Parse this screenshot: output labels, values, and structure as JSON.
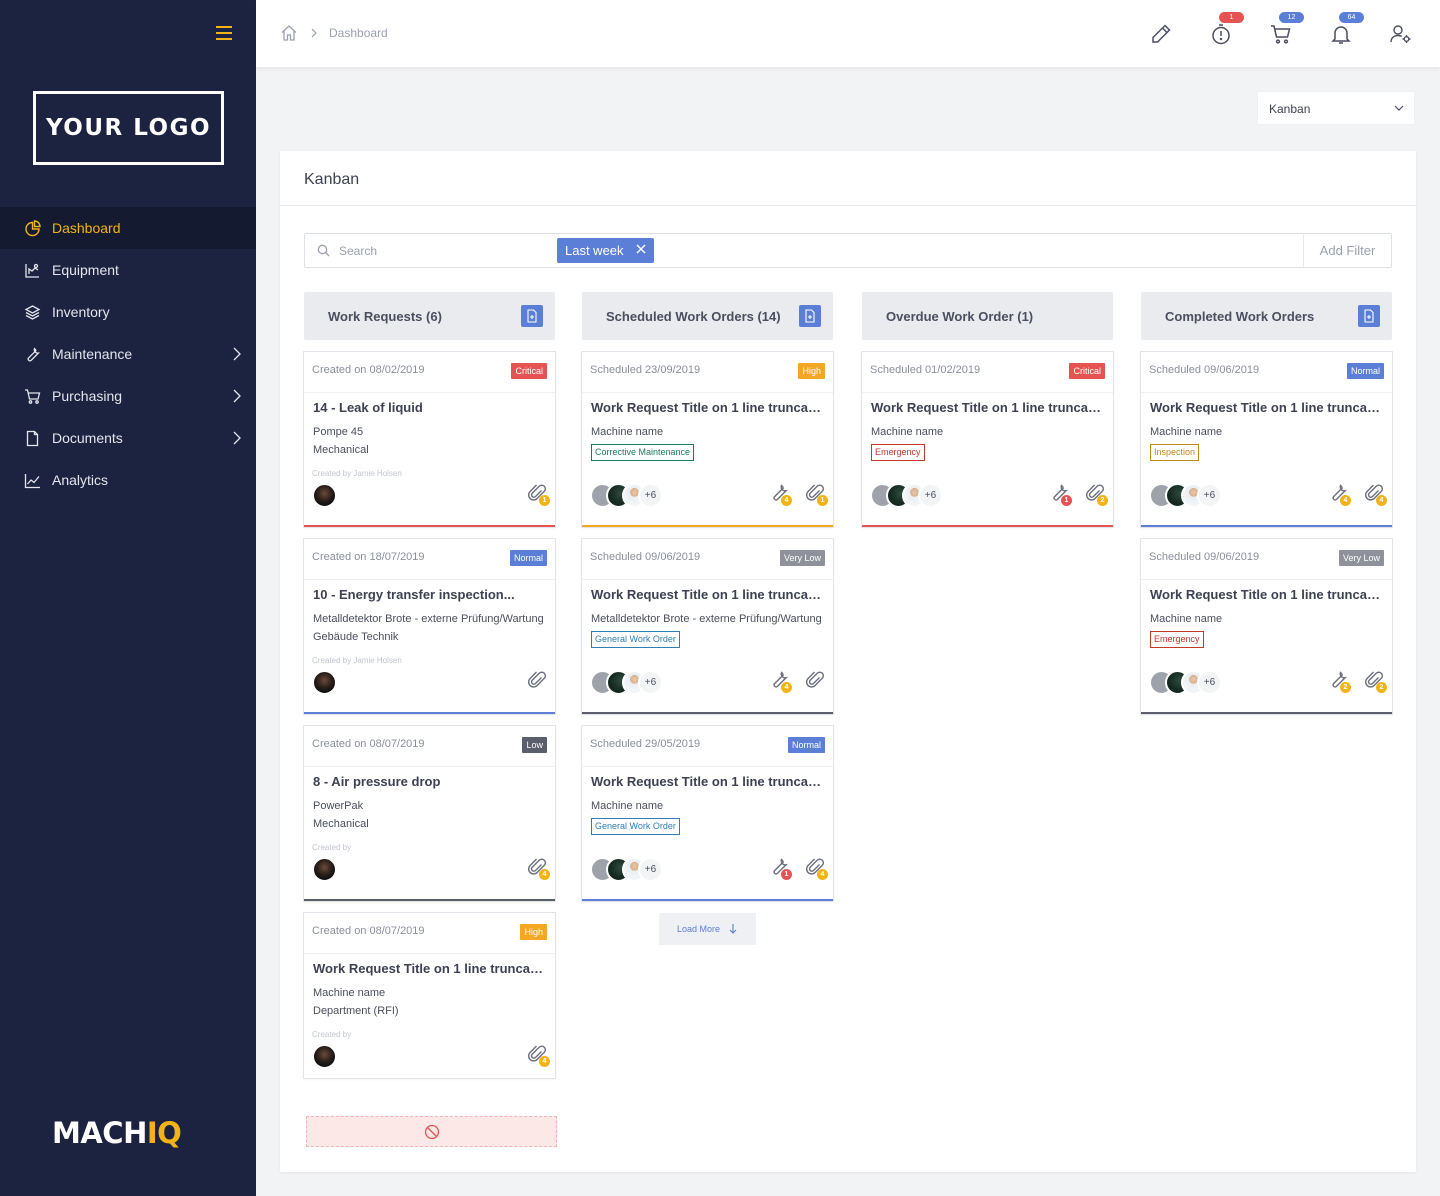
{
  "sidebar": {
    "logo": "YOUR LOGO",
    "brand_a": "MACH",
    "brand_b": "IQ",
    "items": [
      {
        "label": "Dashboard",
        "icon": "dashboard-icon",
        "active": true
      },
      {
        "label": "Equipment",
        "icon": "equipment-icon"
      },
      {
        "label": "Inventory",
        "icon": "inventory-icon"
      },
      {
        "label": "Maintenance",
        "icon": "wrench-icon",
        "submenu": true
      },
      {
        "label": "Purchasing",
        "icon": "cart-icon",
        "submenu": true
      },
      {
        "label": "Documents",
        "icon": "document-icon",
        "submenu": true
      },
      {
        "label": "Analytics",
        "icon": "analytics-icon"
      }
    ]
  },
  "topbar": {
    "breadcrumb": "Dashboard",
    "badges": {
      "timer": "1",
      "cart": "12",
      "bell": "64"
    },
    "badge_colors": {
      "red": "#e55353",
      "blue": "#5b7fd6"
    }
  },
  "view_select": {
    "value": "Kanban"
  },
  "panel": {
    "title": "Kanban"
  },
  "filter": {
    "search_placeholder": "Search",
    "chip": "Last week",
    "add_filter": "Add Filter"
  },
  "columns": [
    {
      "title": "Work Requests (6)",
      "cards": [
        {
          "meta": "Created on 08/02/2019",
          "priority": "Critical",
          "title": "14 - Leak of liquid",
          "line1": "Pompe 45",
          "line2": "Mechanical",
          "created_by": "Created by Jamie Holsen",
          "attach_count": "1"
        },
        {
          "meta": "Created on 18/07/2019",
          "priority": "Normal",
          "title": "10 - Energy transfer inspection...",
          "line1": "Metalldetektor Brote - externe Prüfung/Wartung",
          "line2": "Gebäude Technik",
          "created_by": "Created by Jamie Holsen",
          "attach_count": ""
        },
        {
          "meta": "Created on 08/07/2019",
          "priority": "Low",
          "title": "8 - Air pressure drop",
          "line1": "PowerPak",
          "line2": "Mechanical",
          "created_by": "Created by",
          "attach_count": "4"
        },
        {
          "meta": "Created on 08/07/2019",
          "priority": "High",
          "title": "Work Request Title on 1 line truncated",
          "line1": "Machine name",
          "line2": "Department (RFI)",
          "created_by": "Created by",
          "attach_count": "4"
        }
      ]
    },
    {
      "title": "Scheduled Work Orders (14)",
      "load_more": "Load More",
      "cards": [
        {
          "meta": "Scheduled 23/09/2019",
          "priority": "High",
          "title": "Work Request Title on 1 line truncated",
          "line1": "Machine name",
          "tag": "Corrective Maintenance",
          "more": "+6",
          "wrench_count": "4",
          "attach_count": "1"
        },
        {
          "meta": "Scheduled 09/06/2019",
          "priority": "Very Low",
          "title": "Work Request Title on 1 line truncated",
          "line1": "Metalldetektor Brote - externe Prüfung/Wartung",
          "tag": "General Work Order",
          "more": "+6",
          "wrench_count": "4",
          "attach_count": ""
        },
        {
          "meta": "Scheduled 29/05/2019",
          "priority": "Normal",
          "title": "Work Request Title on 1 line truncated",
          "line1": "Machine name",
          "tag": "General Work Order",
          "more": "+6",
          "wrench_count": "1",
          "attach_count": "4"
        }
      ]
    },
    {
      "title": "Overdue Work Order (1)",
      "cards": [
        {
          "meta": "Scheduled 01/02/2019",
          "priority": "Critical",
          "title": "Work Request Title on 1 line truncated",
          "line1": "Machine name",
          "tag": "Emergency",
          "more": "+6",
          "wrench_count": "1",
          "attach_count": "2"
        }
      ]
    },
    {
      "title": "Completed Work Orders",
      "cards": [
        {
          "meta": "Scheduled 09/06/2019",
          "priority": "Normal",
          "title": "Work Request Title on 1 line truncated",
          "line1": "Machine name",
          "tag": "Inspection",
          "more": "+6",
          "wrench_count": "4",
          "attach_count": "4"
        },
        {
          "meta": "Scheduled 09/06/2019",
          "priority": "Very Low",
          "title": "Work Request Title on 1 line truncated",
          "line1": "Machine name",
          "tag": "Emergency",
          "more": "+6",
          "wrench_count": "2",
          "attach_count": "2"
        }
      ]
    }
  ]
}
